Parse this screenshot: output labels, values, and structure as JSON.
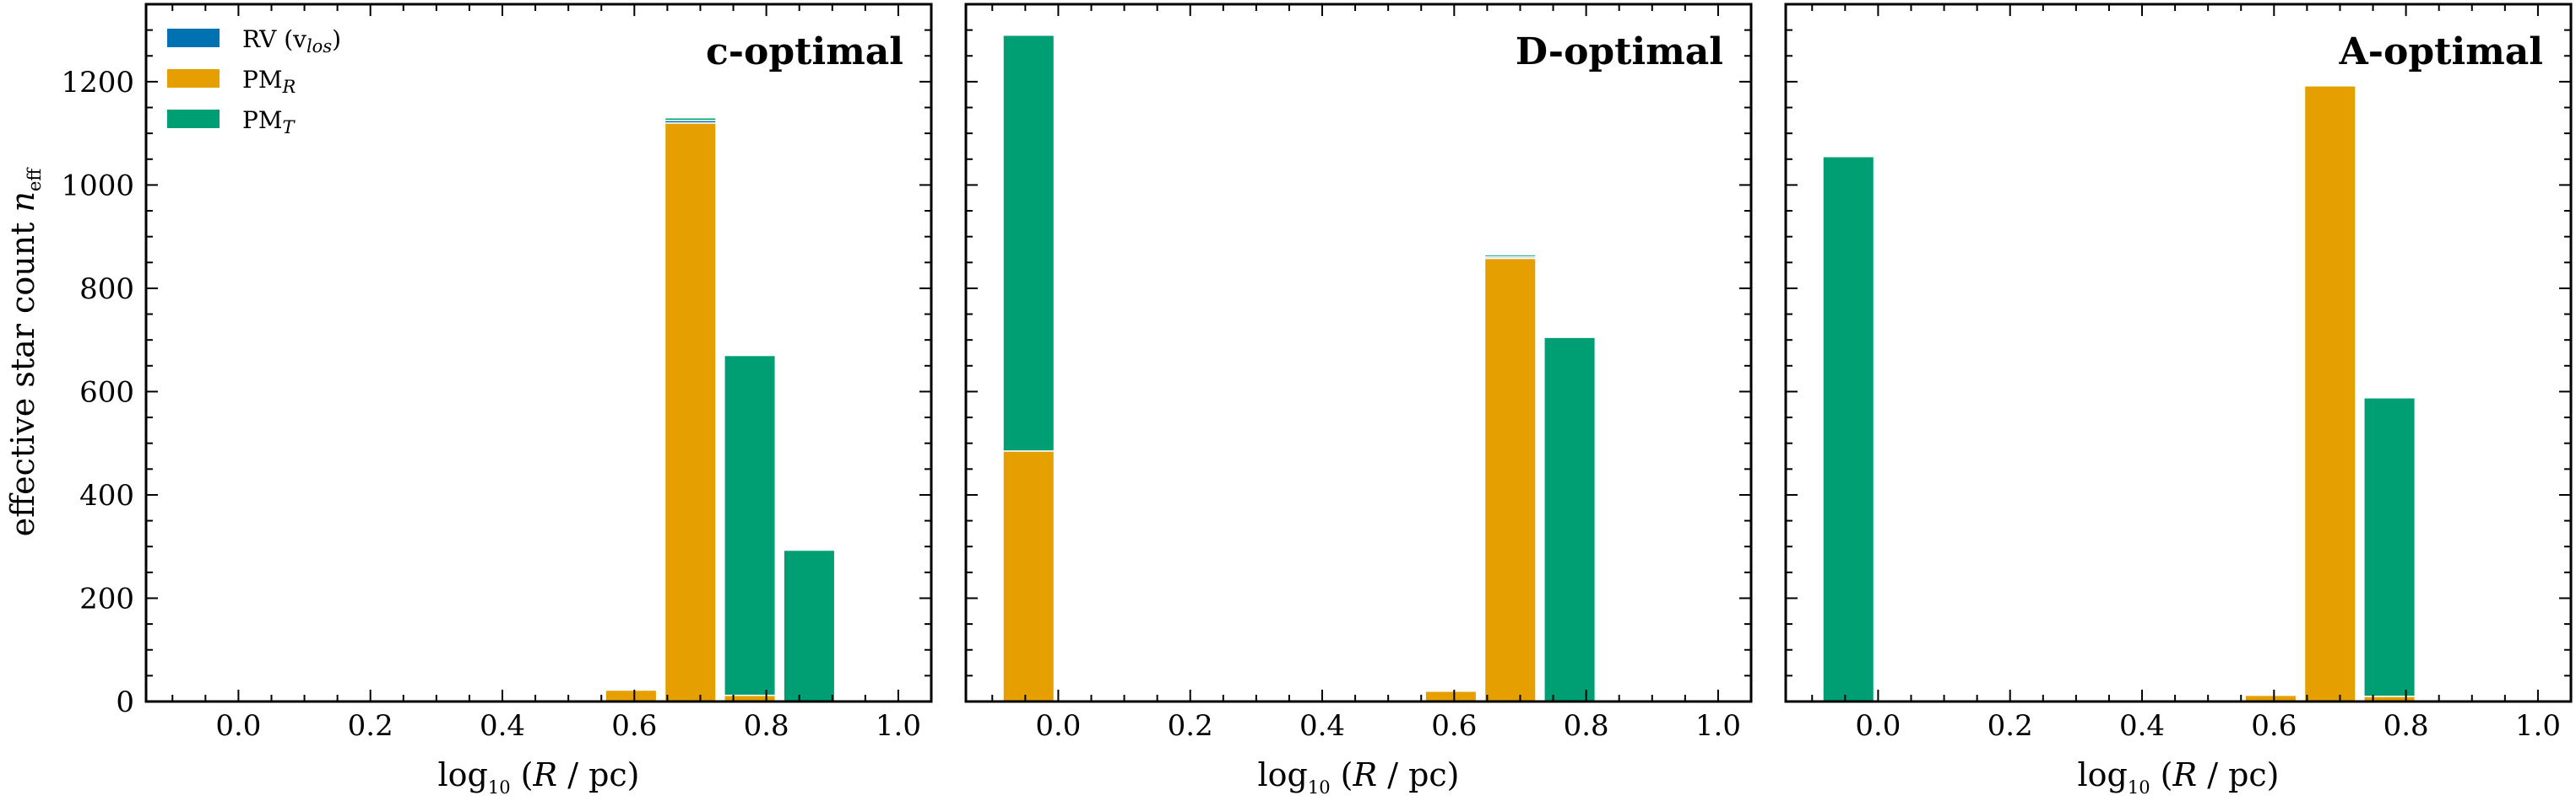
{
  "figure": {
    "ylabel_text": "effective star count",
    "ylabel_symbol": "n",
    "ylabel_symbol_sub": "eff",
    "legend": [
      {
        "label": "RV (v",
        "sub": "los",
        "suffix": ")",
        "color": "#0072B2"
      },
      {
        "label": "PM",
        "sub": "R",
        "suffix": "",
        "color": "#E69F00"
      },
      {
        "label": "PM",
        "sub": "T",
        "suffix": "",
        "color": "#009E73"
      }
    ]
  },
  "chart_data": [
    {
      "type": "bar",
      "stacked": true,
      "title": "c-optimal",
      "xlabel": "log10(R/pc)",
      "ylabel": "effective star count  n_eff",
      "xlim": [
        -0.14,
        1.05
      ],
      "ylim": [
        0,
        1350
      ],
      "xticks": [
        "0.0",
        "0.2",
        "0.4",
        "0.6",
        "0.8",
        "1.0"
      ],
      "yticks": [
        "0",
        "200",
        "400",
        "600",
        "800",
        "1000",
        "1200"
      ],
      "bar_width": 0.08,
      "bars": [
        {
          "x": 0.595,
          "RV": 0,
          "PM_R": 22,
          "PM_T": 0
        },
        {
          "x": 0.685,
          "RV": 5,
          "PM_R": 1120,
          "PM_T": 5
        },
        {
          "x": 0.775,
          "RV": 0,
          "PM_R": 12,
          "PM_T": 658
        },
        {
          "x": 0.865,
          "RV": 0,
          "PM_R": 0,
          "PM_T": 293
        }
      ]
    },
    {
      "type": "bar",
      "stacked": true,
      "title": "D-optimal",
      "xlabel": "log10(R/pc)",
      "xlim": [
        -0.14,
        1.05
      ],
      "ylim": [
        0,
        1350
      ],
      "xticks": [
        "0.0",
        "0.2",
        "0.4",
        "0.6",
        "0.8",
        "1.0"
      ],
      "bar_width": 0.08,
      "bars": [
        {
          "x": -0.045,
          "RV": 0,
          "PM_R": 485,
          "PM_T": 805
        },
        {
          "x": 0.595,
          "RV": 0,
          "PM_R": 20,
          "PM_T": 0
        },
        {
          "x": 0.685,
          "RV": 3,
          "PM_R": 858,
          "PM_T": 4
        },
        {
          "x": 0.775,
          "RV": 0,
          "PM_R": 0,
          "PM_T": 705
        }
      ]
    },
    {
      "type": "bar",
      "stacked": true,
      "title": "A-optimal",
      "xlabel": "log10(R/pc)",
      "xlim": [
        -0.14,
        1.05
      ],
      "ylim": [
        0,
        1350
      ],
      "xticks": [
        "0.0",
        "0.2",
        "0.4",
        "0.6",
        "0.8",
        "1.0"
      ],
      "bar_width": 0.08,
      "bars": [
        {
          "x": -0.045,
          "RV": 0,
          "PM_R": 0,
          "PM_T": 1055
        },
        {
          "x": 0.595,
          "RV": 0,
          "PM_R": 12,
          "PM_T": 0
        },
        {
          "x": 0.685,
          "RV": 0,
          "PM_R": 1192,
          "PM_T": 0
        },
        {
          "x": 0.775,
          "RV": 0,
          "PM_R": 10,
          "PM_T": 578
        }
      ]
    }
  ]
}
